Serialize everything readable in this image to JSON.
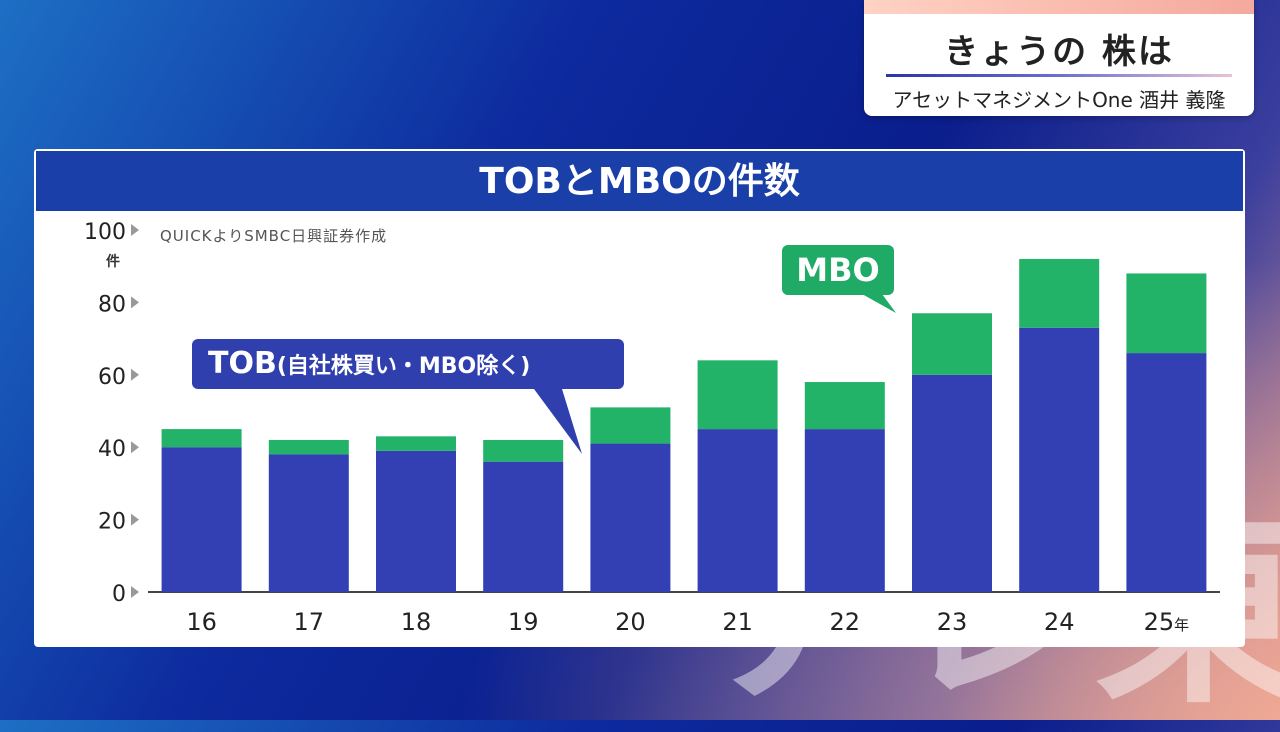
{
  "title_card": {
    "title": "きょうの 株は",
    "subtitle": "アセットマネジメントOne 酒井 義隆"
  },
  "chart_header": "TOBとMBOの件数",
  "source_note": "QUICKよりSMBC日興証券作成",
  "unit": "件",
  "callouts": {
    "tob_main": "TOB",
    "tob_note": "(自社株買い・MBO除く)",
    "mbo": "MBO"
  },
  "watermark": "テレ東",
  "colors": {
    "tob": "#3340b4",
    "mbo": "#22b268",
    "header": "#1b3fa8"
  },
  "chart_data": {
    "type": "bar",
    "stacked": true,
    "title": "TOBとMBOの件数",
    "xlabel": "",
    "ylabel": "件",
    "ylim": [
      0,
      100
    ],
    "yticks": [
      0,
      20,
      40,
      60,
      80,
      100
    ],
    "categories": [
      "16",
      "17",
      "18",
      "19",
      "20",
      "21",
      "22",
      "23",
      "24",
      "25"
    ],
    "last_category_suffix": "年",
    "series": [
      {
        "name": "TOB(自社株買い・MBO除く)",
        "values": [
          40,
          38,
          39,
          36,
          41,
          45,
          45,
          60,
          73,
          66
        ]
      },
      {
        "name": "MBO",
        "values": [
          5,
          4,
          4,
          6,
          10,
          19,
          13,
          17,
          19,
          22
        ]
      }
    ],
    "legend": "callouts"
  }
}
